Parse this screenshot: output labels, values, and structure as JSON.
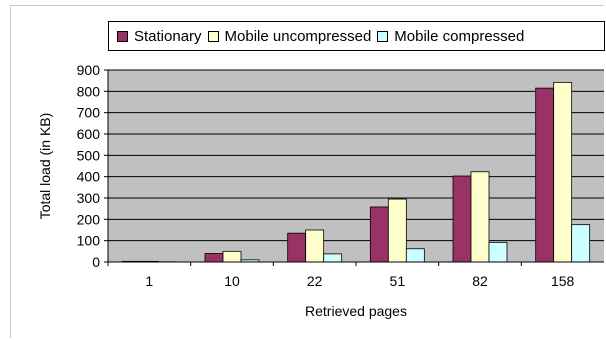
{
  "chart_data": {
    "type": "bar",
    "title": "",
    "xlabel": "Retrieved pages",
    "ylabel": "Total load (in KB)",
    "categories": [
      "1",
      "10",
      "22",
      "51",
      "82",
      "158"
    ],
    "ylim": [
      0,
      900
    ],
    "yticks": [
      "0",
      "100",
      "200",
      "300",
      "400",
      "500",
      "600",
      "700",
      "800",
      "900"
    ],
    "grid": true,
    "legend_position": "top",
    "plot_background": "#c0c0c0",
    "series": [
      {
        "name": "Stationary",
        "color": "#993366",
        "values": [
          3,
          40,
          135,
          258,
          403,
          815
        ]
      },
      {
        "name": "Mobile uncompressed",
        "color": "#ffffcc",
        "values": [
          3,
          50,
          150,
          295,
          423,
          842
        ]
      },
      {
        "name": "Mobile compressed",
        "color": "#ccffff",
        "values": [
          1,
          10,
          38,
          62,
          92,
          175
        ]
      }
    ]
  }
}
